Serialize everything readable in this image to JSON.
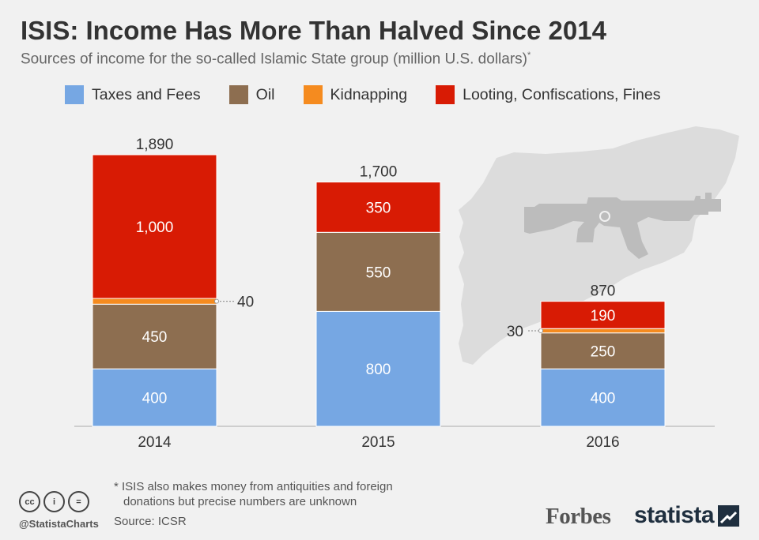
{
  "header": {
    "title": "ISIS: Income Has More Than Halved Since 2014",
    "subtitle": "Sources of income for the so-called Islamic State group (million U.S. dollars)",
    "subtitle_mark": "*"
  },
  "footer": {
    "footnote_line1": "* ISIS also makes money from antiquities and foreign",
    "footnote_line2": "donations but precise numbers are unknown",
    "source": "Source: ICSR",
    "handle": "@StatistaCharts",
    "cc_icons": [
      "cc-icon",
      "attribution-icon",
      "equals-icon"
    ],
    "cc_glyphs": [
      "cc",
      "i",
      "="
    ],
    "forbes_logo": "Forbes",
    "statista_logo": "statista"
  },
  "chart_data": {
    "type": "bar",
    "stacked": true,
    "title": "ISIS: Income Has More Than Halved Since 2014",
    "subtitle": "Sources of income for the so-called Islamic State group (million U.S. dollars)",
    "categories": [
      "2014",
      "2015",
      "2016"
    ],
    "series": [
      {
        "name": "Taxes and Fees",
        "color": "#76a7e3",
        "values": [
          400,
          800,
          400
        ],
        "labels": [
          "400",
          "800",
          "400"
        ]
      },
      {
        "name": "Oil",
        "color": "#8d6e50",
        "values": [
          450,
          550,
          250
        ],
        "labels": [
          "450",
          "550",
          "250"
        ]
      },
      {
        "name": "Kidnapping",
        "color": "#f58b1f",
        "values": [
          40,
          0,
          30
        ],
        "labels": [
          "40",
          "",
          "30"
        ]
      },
      {
        "name": "Looting, Confiscations, Fines",
        "color": "#d81b04",
        "values": [
          1000,
          350,
          190
        ],
        "labels": [
          "1,000",
          "350",
          "190"
        ]
      }
    ],
    "totals": [
      1890,
      1700,
      870
    ],
    "total_labels": [
      "1,890",
      "1,700",
      "870"
    ],
    "ylim": [
      0,
      1890
    ],
    "grid": false,
    "legend_position": "top",
    "background_icon": "syria-map-with-rifle-icon"
  }
}
